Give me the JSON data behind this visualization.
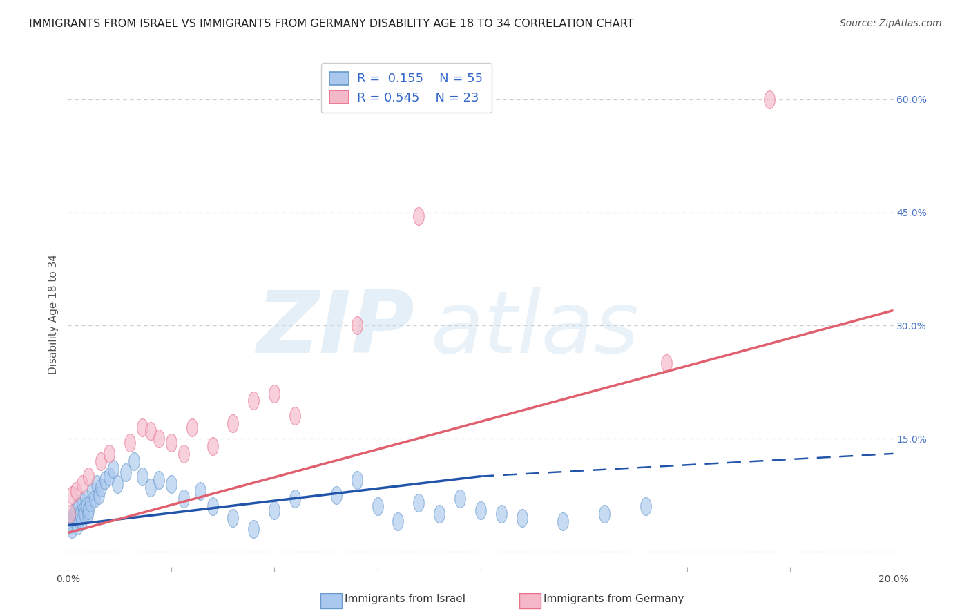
{
  "title": "IMMIGRANTS FROM ISRAEL VS IMMIGRANTS FROM GERMANY DISABILITY AGE 18 TO 34 CORRELATION CHART",
  "source": "Source: ZipAtlas.com",
  "ylabel": "Disability Age 18 to 34",
  "xlim": [
    0.0,
    20.0
  ],
  "ylim": [
    -2.0,
    65.0
  ],
  "y_ticks": [
    0,
    15,
    30,
    45,
    60
  ],
  "y_tick_labels": [
    "",
    "15.0%",
    "30.0%",
    "45.0%",
    "60.0%"
  ],
  "grid_color": "#cccccc",
  "background_color": "#ffffff",
  "israel_color": "#aac8ee",
  "germany_color": "#f5b8c8",
  "israel_edge_color": "#6699cc",
  "germany_edge_color": "#e8708a",
  "israel_line_color": "#2255aa",
  "germany_line_color": "#e06070",
  "legend_r_israel": "R =  0.155",
  "legend_n_israel": "N = 55",
  "legend_r_germany": "R = 0.545",
  "legend_n_germany": "N = 23",
  "legend_label_israel": "Immigrants from Israel",
  "legend_label_germany": "Immigrants from Germany",
  "watermark_zip": "ZIP",
  "watermark_atlas": "atlas",
  "israel_x": [
    0.05,
    0.07,
    0.1,
    0.12,
    0.15,
    0.18,
    0.2,
    0.22,
    0.25,
    0.28,
    0.3,
    0.33,
    0.35,
    0.38,
    0.4,
    0.42,
    0.45,
    0.48,
    0.5,
    0.55,
    0.6,
    0.65,
    0.7,
    0.75,
    0.8,
    0.9,
    1.0,
    1.1,
    1.2,
    1.4,
    1.6,
    1.8,
    2.0,
    2.2,
    2.5,
    2.8,
    3.2,
    3.5,
    4.0,
    4.5,
    5.0,
    5.5,
    6.5,
    7.0,
    7.5,
    8.0,
    8.5,
    9.0,
    9.5,
    10.0,
    10.5,
    11.0,
    12.0,
    13.0,
    14.0
  ],
  "israel_y": [
    3.5,
    4.0,
    3.0,
    4.5,
    5.0,
    4.0,
    5.5,
    3.5,
    6.0,
    4.5,
    5.0,
    4.0,
    6.5,
    5.5,
    5.0,
    7.0,
    6.0,
    5.0,
    5.5,
    6.5,
    8.0,
    7.0,
    9.0,
    7.5,
    8.5,
    9.5,
    10.0,
    11.0,
    9.0,
    10.5,
    12.0,
    10.0,
    8.5,
    9.5,
    9.0,
    7.0,
    8.0,
    6.0,
    4.5,
    3.0,
    5.5,
    7.0,
    7.5,
    9.5,
    6.0,
    4.0,
    6.5,
    5.0,
    7.0,
    5.5,
    5.0,
    4.5,
    4.0,
    5.0,
    6.0
  ],
  "germany_x": [
    0.05,
    0.1,
    0.2,
    0.35,
    0.5,
    0.8,
    1.0,
    1.5,
    1.8,
    2.0,
    2.2,
    2.5,
    2.8,
    3.0,
    3.5,
    4.0,
    4.5,
    5.0,
    5.5,
    7.0,
    8.5,
    14.5,
    17.0
  ],
  "germany_y": [
    5.0,
    7.5,
    8.0,
    9.0,
    10.0,
    12.0,
    13.0,
    14.5,
    16.5,
    16.0,
    15.0,
    14.5,
    13.0,
    16.5,
    14.0,
    17.0,
    20.0,
    21.0,
    18.0,
    30.0,
    44.5,
    25.0,
    60.0
  ],
  "israel_reg_x0": 0.0,
  "israel_reg_x1": 10.0,
  "israel_reg_y0": 3.5,
  "israel_reg_y1": 10.0,
  "israel_dash_x0": 10.0,
  "israel_dash_x1": 20.0,
  "israel_dash_y0": 10.0,
  "israel_dash_y1": 13.0,
  "germany_reg_x0": 0.0,
  "germany_reg_x1": 20.0,
  "germany_reg_y0": 2.5,
  "germany_reg_y1": 32.0,
  "title_fontsize": 11.5,
  "axis_label_fontsize": 11,
  "tick_fontsize": 10,
  "legend_fontsize": 12,
  "source_fontsize": 10,
  "marker_size": 350
}
